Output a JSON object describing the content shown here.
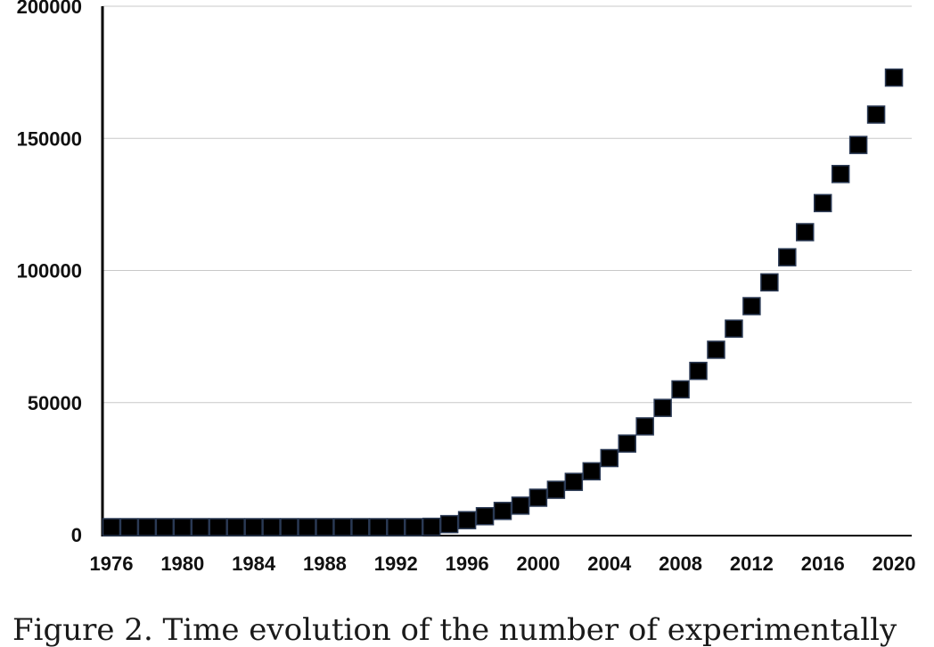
{
  "chart_data": {
    "type": "scatter",
    "title": "",
    "xlabel": "",
    "ylabel": "",
    "xlim": [
      1975.5,
      2021
    ],
    "ylim": [
      0,
      200000
    ],
    "y_ticks": [
      "0",
      "50000",
      "100000",
      "150000",
      "200000"
    ],
    "x_ticks": [
      "1976",
      "1980",
      "1984",
      "1988",
      "1992",
      "1996",
      "2000",
      "2004",
      "2008",
      "2012",
      "2016",
      "2020"
    ],
    "grid": "horizontal",
    "marker": "square",
    "colors": {
      "marker": "#000000",
      "marker_edge": "#2b3a55",
      "grid": "#c8c8c8",
      "axis": "#000000"
    },
    "x": [
      1976,
      1977,
      1978,
      1979,
      1980,
      1981,
      1982,
      1983,
      1984,
      1985,
      1986,
      1987,
      1988,
      1989,
      1990,
      1991,
      1992,
      1993,
      1994,
      1995,
      1996,
      1997,
      1998,
      1999,
      2000,
      2001,
      2002,
      2003,
      2004,
      2005,
      2006,
      2007,
      2008,
      2009,
      2010,
      2011,
      2012,
      2013,
      2014,
      2015,
      2016,
      2017,
      2018,
      2019,
      2020
    ],
    "y": [
      0,
      0,
      0,
      100,
      200,
      200,
      200,
      200,
      200,
      200,
      200,
      300,
      300,
      400,
      600,
      900,
      1200,
      2000,
      3000,
      4000,
      5500,
      7000,
      9000,
      11000,
      14000,
      17000,
      20000,
      24000,
      29000,
      34500,
      41000,
      48000,
      55000,
      62000,
      70000,
      78000,
      86500,
      95500,
      105000,
      114500,
      125500,
      136500,
      147500,
      159000,
      173000
    ]
  },
  "caption": "Figure 2. Time evolution of the number of experimentally"
}
